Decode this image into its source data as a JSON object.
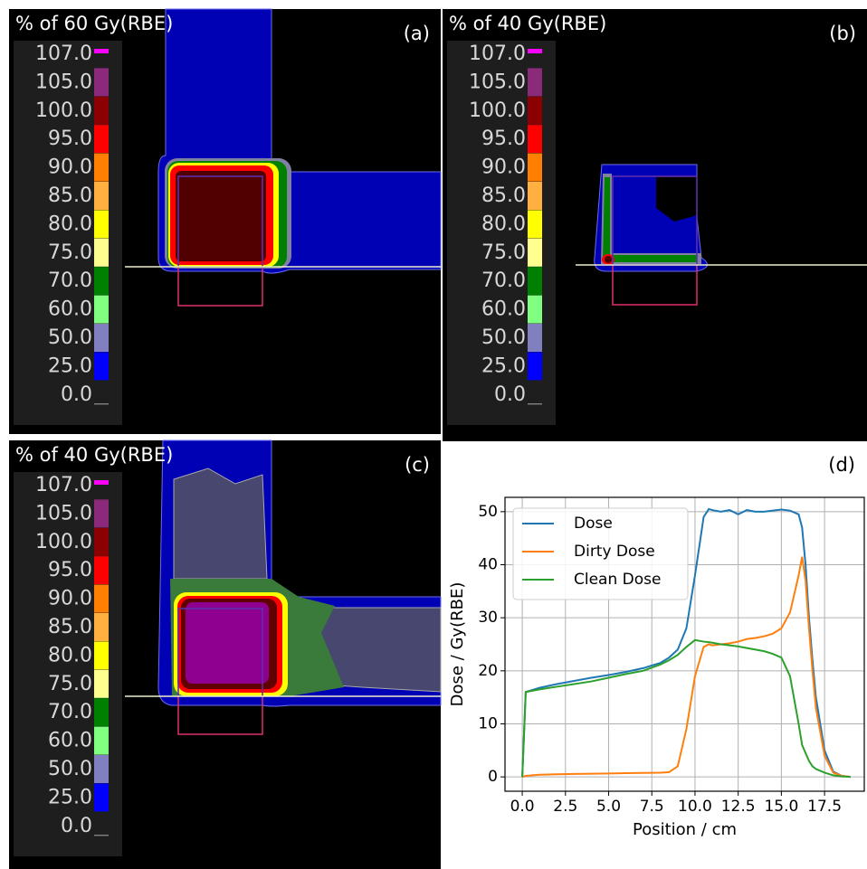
{
  "panels": [
    {
      "title": "% of 60 Gy(RBE)",
      "label": "(a)"
    },
    {
      "title": "% of 40 Gy(RBE)",
      "label": "(b)"
    },
    {
      "title": "% of 40 Gy(RBE)",
      "label": "(c)"
    }
  ],
  "colorbar": {
    "labels": [
      "107.0",
      "105.0",
      "100.0",
      "95.0",
      "90.0",
      "85.0",
      "80.0",
      "75.0",
      "70.0",
      "60.0",
      "50.0",
      "25.0",
      "0.0"
    ],
    "colors": [
      "#ff00ff",
      "#8b2a7a",
      "#8b0000",
      "#ff0000",
      "#ff8000",
      "#ffb040",
      "#ffff00",
      "#ffff90",
      "#008000",
      "#80ff80",
      "#8080c0",
      "#0000ff"
    ]
  },
  "chart_data": {
    "type": "line",
    "label": "(d)",
    "xlabel": "Position / cm",
    "ylabel": "Dose / Gy(RBE)",
    "x": [
      0,
      0.2,
      1,
      2,
      3,
      4,
      5,
      6,
      7,
      7.5,
      8,
      8.5,
      9,
      9.5,
      10,
      10.5,
      10.8,
      11,
      11.5,
      12,
      12.5,
      13,
      13.5,
      14,
      14.5,
      15,
      15.5,
      16,
      16.2,
      16.4,
      16.6,
      16.8,
      17,
      17.5,
      18,
      18.5,
      19
    ],
    "series": [
      {
        "name": "Dose",
        "color": "#1f77b4",
        "values": [
          0,
          16,
          16.8,
          17.5,
          18.1,
          18.7,
          19.2,
          19.8,
          20.5,
          21,
          21.5,
          22.5,
          24,
          28,
          38,
          49,
          50.5,
          50.3,
          50,
          50.3,
          49.5,
          50.3,
          50,
          50,
          50.2,
          50.4,
          50.2,
          49.5,
          47,
          40,
          30,
          22,
          15,
          5,
          1,
          0.2,
          0
        ]
      },
      {
        "name": "Dirty Dose",
        "color": "#ff7f0e",
        "values": [
          0,
          0.2,
          0.4,
          0.5,
          0.55,
          0.6,
          0.65,
          0.7,
          0.75,
          0.78,
          0.8,
          0.9,
          2,
          9,
          19,
          24.5,
          25,
          24.8,
          25,
          25.2,
          25.5,
          26,
          26.2,
          26.5,
          27,
          28,
          31,
          38,
          41.5,
          37,
          28,
          20,
          13,
          4,
          0.8,
          0.2,
          0
        ]
      },
      {
        "name": "Clean Dose",
        "color": "#2ca02c",
        "values": [
          0,
          16,
          16.5,
          17,
          17.5,
          18,
          18.7,
          19.4,
          20,
          20.6,
          21.2,
          22,
          23,
          24.5,
          25.8,
          25.5,
          25.4,
          25.3,
          25,
          24.8,
          24.6,
          24.3,
          24,
          23.7,
          23.2,
          22.5,
          19,
          10,
          6,
          4.5,
          3,
          2,
          1.5,
          0.8,
          0.3,
          0.1,
          0
        ]
      }
    ],
    "xlim": [
      -1,
      19.8
    ],
    "ylim": [
      -2.7,
      52.7
    ],
    "xticks": [
      {
        "value": 0,
        "label": "0.0"
      },
      {
        "value": 2.5,
        "label": "2.5"
      },
      {
        "value": 5,
        "label": "5.0"
      },
      {
        "value": 7.5,
        "label": "7.5"
      },
      {
        "value": 10,
        "label": "10.0"
      },
      {
        "value": 12.5,
        "label": "12.5"
      },
      {
        "value": 15,
        "label": "15.0"
      },
      {
        "value": 17.5,
        "label": "17.5"
      }
    ],
    "yticks": [
      0,
      10,
      20,
      30,
      40,
      50
    ],
    "grid": true,
    "legend": "upper left"
  }
}
